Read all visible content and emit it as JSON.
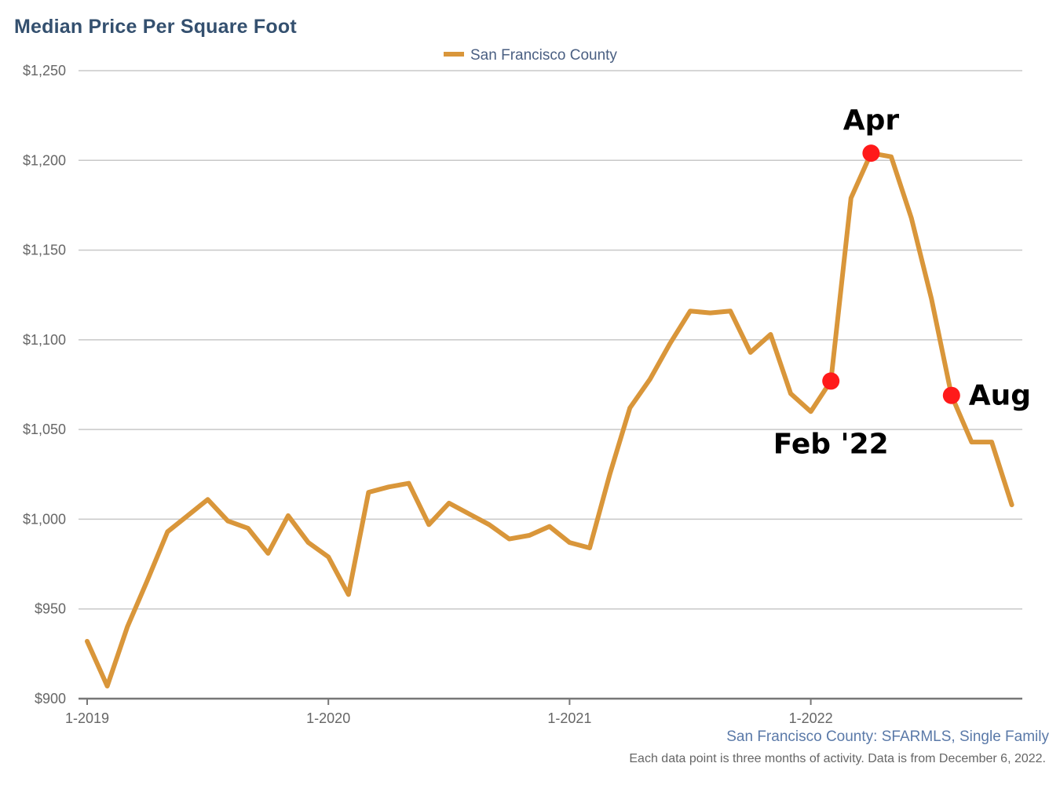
{
  "chart_data": {
    "type": "line",
    "title": "Median Price Per Square Foot",
    "xlabel": "",
    "ylabel": "",
    "ylim": [
      900,
      1250
    ],
    "yticks": [
      900,
      950,
      1000,
      1050,
      1100,
      1150,
      1200,
      1250
    ],
    "ytick_labels": [
      "$900",
      "$950",
      "$1,000",
      "$1,050",
      "$1,100",
      "$1,150",
      "$1,200",
      "$1,250"
    ],
    "xticks": [
      "2019-01",
      "2020-01",
      "2021-01",
      "2022-01"
    ],
    "xtick_labels": [
      "1-2019",
      "1-2020",
      "1-2021",
      "1-2022"
    ],
    "grid": "horizontal",
    "legend_position": "top-center",
    "series": [
      {
        "name": "San Francisco County",
        "color": "#d9963a",
        "points": [
          [
            "2019-01",
            932
          ],
          [
            "2019-02",
            907
          ],
          [
            "2019-03",
            940
          ],
          [
            "2019-04",
            966
          ],
          [
            "2019-05",
            993
          ],
          [
            "2019-06",
            1002
          ],
          [
            "2019-07",
            1011
          ],
          [
            "2019-08",
            999
          ],
          [
            "2019-09",
            995
          ],
          [
            "2019-10",
            981
          ],
          [
            "2019-11",
            1002
          ],
          [
            "2019-12",
            987
          ],
          [
            "2020-01",
            979
          ],
          [
            "2020-02",
            958
          ],
          [
            "2020-03",
            1015
          ],
          [
            "2020-04",
            1018
          ],
          [
            "2020-05",
            1020
          ],
          [
            "2020-06",
            997
          ],
          [
            "2020-07",
            1009
          ],
          [
            "2020-08",
            1003
          ],
          [
            "2020-09",
            997
          ],
          [
            "2020-10",
            989
          ],
          [
            "2020-11",
            991
          ],
          [
            "2020-12",
            996
          ],
          [
            "2021-01",
            987
          ],
          [
            "2021-02",
            984
          ],
          [
            "2021-03",
            1025
          ],
          [
            "2021-04",
            1062
          ],
          [
            "2021-05",
            1078
          ],
          [
            "2021-06",
            1098
          ],
          [
            "2021-07",
            1116
          ],
          [
            "2021-08",
            1115
          ],
          [
            "2021-09",
            1116
          ],
          [
            "2021-10",
            1093
          ],
          [
            "2021-11",
            1103
          ],
          [
            "2021-12",
            1070
          ],
          [
            "2022-01",
            1060
          ],
          [
            "2022-02",
            1077
          ],
          [
            "2022-03",
            1179
          ],
          [
            "2022-04",
            1204
          ],
          [
            "2022-05",
            1202
          ],
          [
            "2022-06",
            1168
          ],
          [
            "2022-07",
            1123
          ],
          [
            "2022-08",
            1069
          ],
          [
            "2022-09",
            1043
          ],
          [
            "2022-10",
            1043
          ],
          [
            "2022-11",
            1008
          ]
        ]
      }
    ],
    "annotations": [
      {
        "label": "Feb '22",
        "x": "2022-02",
        "y": 1077,
        "marker_color": "#ff1a1a"
      },
      {
        "label": "Apr",
        "x": "2022-04",
        "y": 1204,
        "marker_color": "#ff1a1a"
      },
      {
        "label": "Aug",
        "x": "2022-08",
        "y": 1069,
        "marker_color": "#ff1a1a"
      }
    ],
    "source": "San Francisco County: SFARMLS, Single Family",
    "footnote": "Each data point is three months of activity. Data is from December 6, 2022."
  }
}
